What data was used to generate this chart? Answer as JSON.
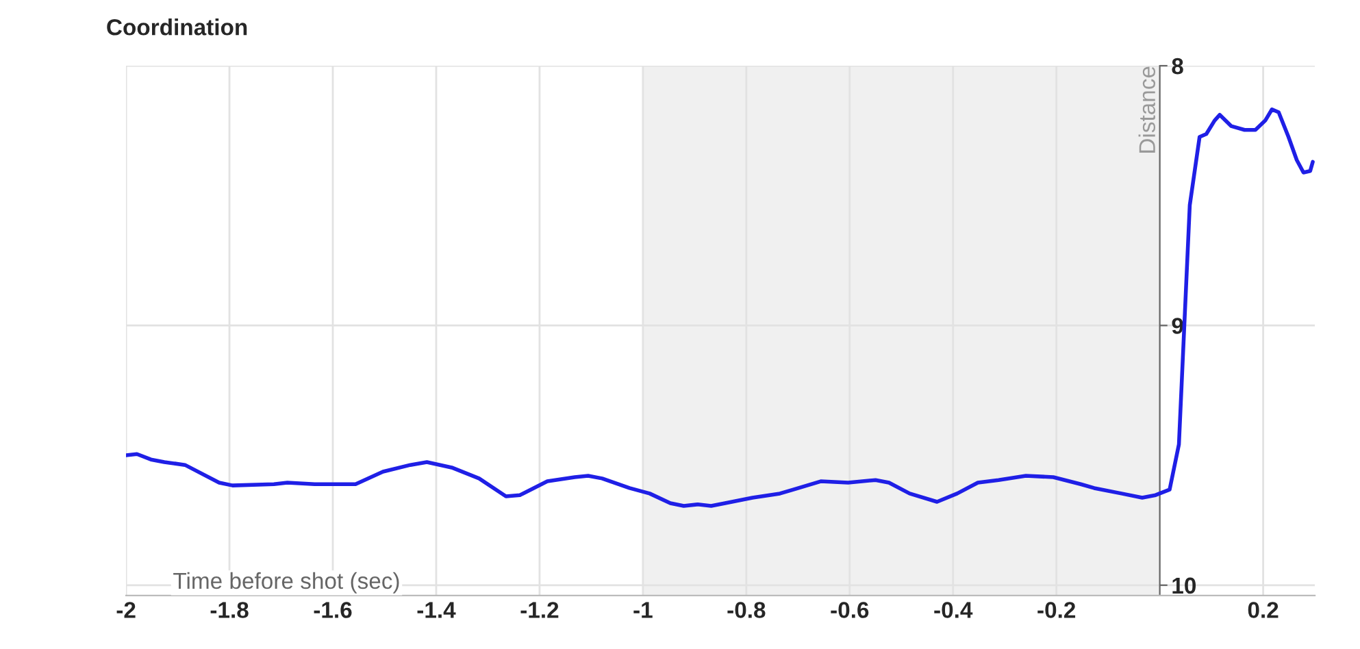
{
  "chart_data": {
    "type": "line",
    "title": "Coordination",
    "xlabel": "Time before shot (sec)",
    "ylabel": "Distance",
    "xlim": [
      -2,
      0.3
    ],
    "ylim": [
      10.04,
      8
    ],
    "xticks": [
      -2,
      -1.8,
      -1.6,
      -1.4,
      -1.2,
      -1,
      -0.8,
      -0.6,
      -0.4,
      -0.2,
      0.2
    ],
    "yticks": [
      8,
      9,
      10
    ],
    "grid": true,
    "legend": false,
    "bands": [
      {
        "axis": "x",
        "from": -1,
        "to": 0,
        "color": "#f0f0f0"
      }
    ],
    "series": [
      {
        "color": "#1f1fe6",
        "x": [
          -2,
          -1.979,
          -1.952,
          -1.926,
          -1.886,
          -1.82,
          -1.794,
          -1.714,
          -1.688,
          -1.635,
          -1.556,
          -1.503,
          -1.45,
          -1.418,
          -1.37,
          -1.317,
          -1.265,
          -1.238,
          -1.185,
          -1.132,
          -1.106,
          -1.079,
          -1.026,
          -0.987,
          -0.947,
          -0.921,
          -0.894,
          -0.868,
          -0.841,
          -0.788,
          -0.735,
          -0.709,
          -0.656,
          -0.603,
          -0.55,
          -0.524,
          -0.484,
          -0.431,
          -0.392,
          -0.352,
          -0.312,
          -0.259,
          -0.206,
          -0.153,
          -0.127,
          -0.074,
          -0.034,
          -0.008,
          0.019,
          0.037,
          0.058,
          0.077,
          0.09,
          0.106,
          0.116,
          0.138,
          0.164,
          0.185,
          0.204,
          0.217,
          0.23,
          0.249,
          0.265,
          0.278,
          0.291,
          0.296
        ],
        "values": [
          9.5,
          9.495,
          9.516,
          9.526,
          9.537,
          9.605,
          9.616,
          9.611,
          9.605,
          9.611,
          9.611,
          9.563,
          9.537,
          9.526,
          9.547,
          9.589,
          9.658,
          9.653,
          9.6,
          9.584,
          9.579,
          9.589,
          9.626,
          9.647,
          9.684,
          9.695,
          9.689,
          9.695,
          9.684,
          9.663,
          9.647,
          9.632,
          9.6,
          9.605,
          9.595,
          9.605,
          9.647,
          9.679,
          9.647,
          9.605,
          9.595,
          9.579,
          9.584,
          9.611,
          9.626,
          9.647,
          9.663,
          9.653,
          9.632,
          9.458,
          8.537,
          8.274,
          8.263,
          8.211,
          8.189,
          8.232,
          8.247,
          8.247,
          8.211,
          8.168,
          8.179,
          8.274,
          8.363,
          8.411,
          8.405,
          8.37
        ]
      }
    ]
  }
}
